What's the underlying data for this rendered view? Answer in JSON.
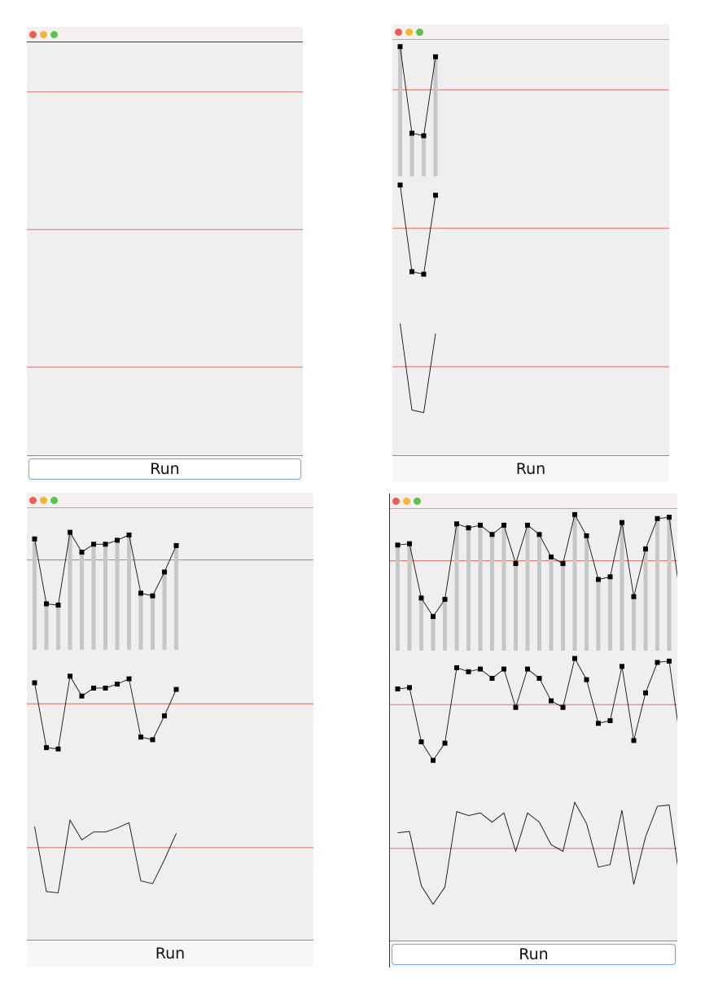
{
  "run_label": "Run",
  "colors": {
    "threshold": "#e36868",
    "bar": "#c6c6c6",
    "line": "#111111",
    "marker": "#000000"
  },
  "chart_data": [
    {
      "type": "line",
      "panel": "top-left",
      "values": []
    },
    {
      "type": "line",
      "panel": "top-right",
      "values": [
        0.98,
        0.3,
        0.28,
        0.9
      ]
    },
    {
      "type": "line",
      "panel": "bottom-left",
      "values": [
        0.8,
        0.31,
        0.3,
        0.85,
        0.7,
        0.76,
        0.76,
        0.79,
        0.83,
        0.39,
        0.37,
        0.55,
        0.75
      ]
    },
    {
      "type": "line",
      "panel": "bottom-right",
      "values": [
        0.76,
        0.77,
        0.36,
        0.22,
        0.35,
        0.92,
        0.89,
        0.91,
        0.84,
        0.91,
        0.62,
        0.91,
        0.84,
        0.67,
        0.62,
        0.99,
        0.83,
        0.5,
        0.52,
        0.93,
        0.37,
        0.73,
        0.96,
        0.97,
        0.33
      ]
    }
  ]
}
